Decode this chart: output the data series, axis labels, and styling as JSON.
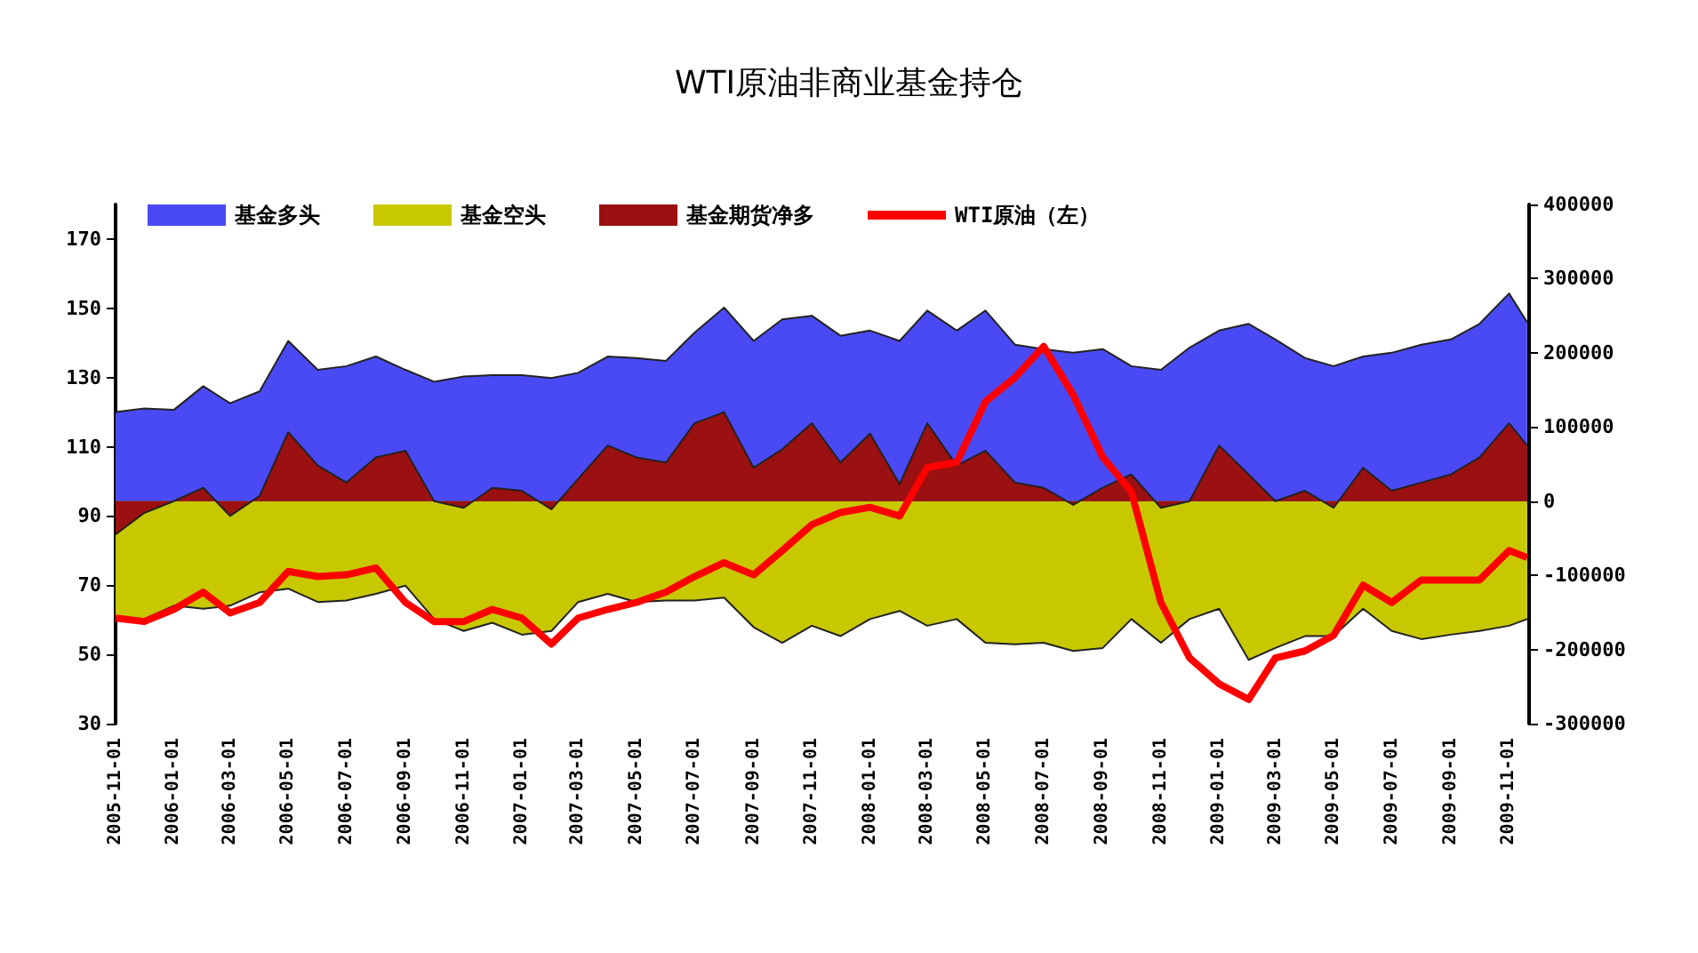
{
  "chart_data": {
    "type": "area",
    "title": "WTI原油非商业基金持仓",
    "legend": "top",
    "marker": "none",
    "line_style": "solid",
    "x": [
      "2005-11-01",
      "2005-12-01",
      "2006-01-01",
      "2006-02-01",
      "2006-03-01",
      "2006-04-01",
      "2006-05-01",
      "2006-06-01",
      "2006-07-01",
      "2006-08-01",
      "2006-09-01",
      "2006-10-01",
      "2006-11-01",
      "2006-12-01",
      "2007-01-01",
      "2007-02-01",
      "2007-03-01",
      "2007-04-01",
      "2007-05-01",
      "2007-06-01",
      "2007-07-01",
      "2007-08-01",
      "2007-09-01",
      "2007-10-01",
      "2007-11-01",
      "2007-12-01",
      "2008-01-01",
      "2008-02-01",
      "2008-03-01",
      "2008-04-01",
      "2008-05-01",
      "2008-06-01",
      "2008-07-01",
      "2008-08-01",
      "2008-09-01",
      "2008-10-01",
      "2008-11-01",
      "2008-12-01",
      "2009-01-01",
      "2009-02-01",
      "2009-03-01",
      "2009-04-01",
      "2009-05-01",
      "2009-06-01",
      "2009-07-01",
      "2009-08-01",
      "2009-09-01",
      "2009-10-01",
      "2009-11-01",
      "2009-11-20"
    ],
    "xlim": [
      "2005-11-01",
      "2009-11-22"
    ],
    "xticks": [
      "2005-11-01",
      "2006-01-01",
      "2006-03-01",
      "2006-05-01",
      "2006-07-01",
      "2006-09-01",
      "2006-11-01",
      "2007-01-01",
      "2007-03-01",
      "2007-05-01",
      "2007-07-01",
      "2007-09-01",
      "2007-11-01",
      "2008-01-01",
      "2008-03-01",
      "2008-05-01",
      "2008-07-01",
      "2008-09-01",
      "2008-11-01",
      "2009-01-01",
      "2009-03-01",
      "2009-05-01",
      "2009-07-01",
      "2009-09-01",
      "2009-11-01"
    ],
    "ylim": [
      30,
      180
    ],
    "yticks": [
      30,
      50,
      70,
      90,
      110,
      130,
      150,
      170
    ],
    "y2lim": [
      -300000,
      400000
    ],
    "y2ticks": [
      -300000,
      -200000,
      -100000,
      0,
      100000,
      200000,
      300000,
      400000
    ],
    "series": [
      {
        "name": "基金多头",
        "axis": "y2",
        "color": "#4a4af5",
        "values": [
          120000,
          125000,
          123000,
          155000,
          132000,
          148000,
          216000,
          177000,
          182000,
          195000,
          177000,
          161000,
          168000,
          170000,
          170000,
          166000,
          173000,
          195000,
          193000,
          189000,
          227000,
          261000,
          216000,
          245000,
          250000,
          223000,
          230000,
          216000,
          257000,
          230000,
          257000,
          211000,
          205000,
          200000,
          205000,
          182000,
          177000,
          207000,
          230000,
          239000,
          218000,
          193000,
          182000,
          195000,
          200000,
          211000,
          218000,
          239000,
          280000,
          241000
        ]
      },
      {
        "name": "基金空头",
        "axis": "y2",
        "color": "#c8c800",
        "values": [
          -157000,
          -159000,
          -141000,
          -145000,
          -141000,
          -123000,
          -118000,
          -136000,
          -134000,
          -125000,
          -114000,
          -159000,
          -175000,
          -164000,
          -180000,
          -175000,
          -136000,
          -125000,
          -136000,
          -134000,
          -134000,
          -130000,
          -170000,
          -191000,
          -168000,
          -182000,
          -159000,
          -148000,
          -168000,
          -159000,
          -191000,
          -193000,
          -191000,
          -202000,
          -198000,
          -159000,
          -191000,
          -159000,
          -145000,
          -214000,
          -198000,
          -182000,
          -182000,
          -145000,
          -175000,
          -186000,
          -180000,
          -175000,
          -168000,
          -159000
        ]
      },
      {
        "name": "基金期货净多",
        "axis": "y2",
        "color": "#9b1010",
        "values": [
          -45000,
          -16000,
          0,
          18000,
          -20000,
          7000,
          93000,
          48000,
          25000,
          59000,
          68000,
          0,
          -9000,
          18000,
          14000,
          -11000,
          30000,
          75000,
          59000,
          52000,
          105000,
          120000,
          45000,
          70000,
          105000,
          52000,
          91000,
          23000,
          105000,
          48000,
          68000,
          25000,
          18000,
          -5000,
          18000,
          36000,
          -9000,
          0,
          75000,
          36000,
          0,
          14000,
          -9000,
          45000,
          14000,
          25000,
          36000,
          59000,
          105000,
          75000
        ]
      },
      {
        "name": "WTI原油（左）",
        "type": "line",
        "color": "#ff0000",
        "values": [
          60.5,
          59.5,
          63,
          68,
          62,
          65,
          74,
          72.5,
          73,
          75,
          65,
          59.5,
          59.5,
          63,
          60.5,
          53,
          60.5,
          63,
          65,
          68,
          72.5,
          76.5,
          73,
          80,
          87.5,
          91,
          92.5,
          90,
          104,
          105.5,
          123,
          130,
          139,
          125,
          107,
          97,
          65,
          49,
          41.5,
          37,
          49,
          51,
          55.5,
          70,
          65,
          71.5,
          71.5,
          71.5,
          80,
          78
        ]
      }
    ]
  }
}
